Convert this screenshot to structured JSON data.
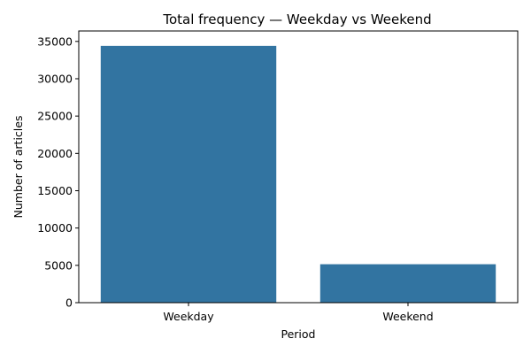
{
  "chart_data": {
    "type": "bar",
    "title": "Total frequency — Weekday vs Weekend",
    "xlabel": "Period",
    "ylabel": "Number of articles",
    "categories": [
      "Weekday",
      "Weekend"
    ],
    "values": [
      34400,
      5150
    ],
    "ylim": [
      0,
      36400
    ],
    "yticks": [
      0,
      5000,
      10000,
      15000,
      20000,
      25000,
      30000,
      35000
    ],
    "grid": false,
    "bar_color": "#3274a1"
  }
}
